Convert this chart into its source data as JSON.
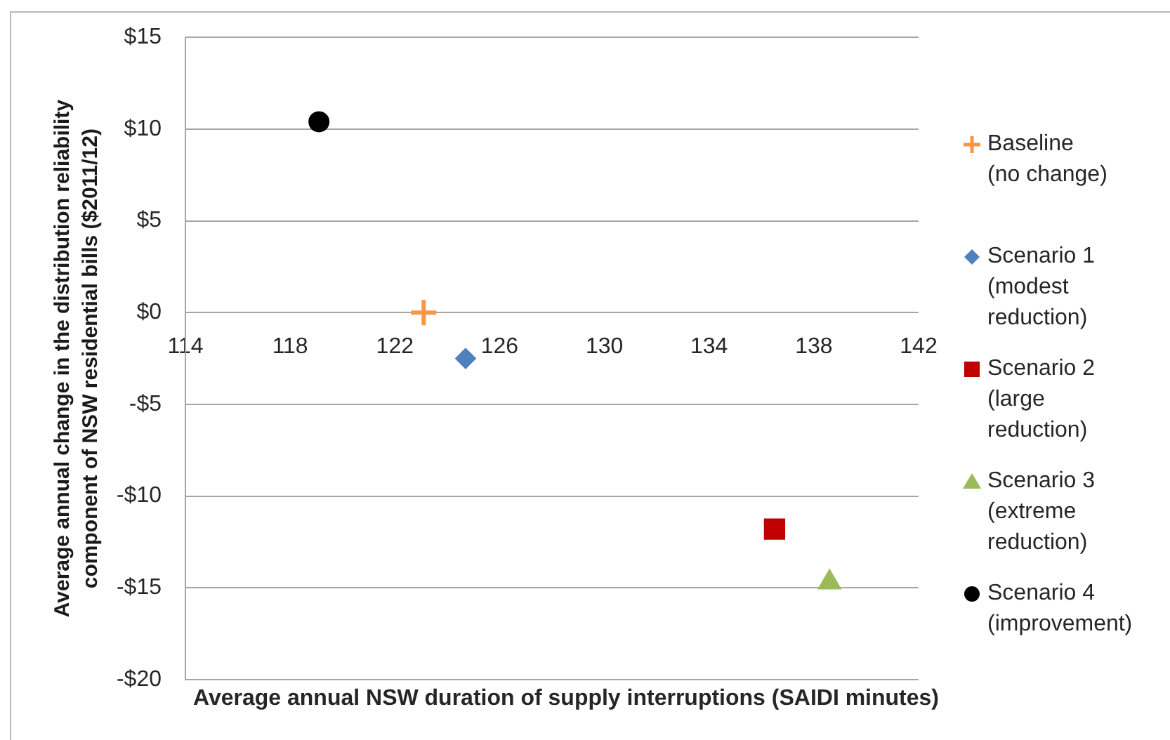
{
  "chart_data": {
    "type": "scatter",
    "xlabel": "Average annual NSW duration of supply interruptions (SAIDI minutes)",
    "ylabel": "Average annual change in the distribution reliability component of NSW residential bills ($2011/12)",
    "series": [
      {
        "name": "Baseline (no change)",
        "color": "#f79646",
        "marker": "cross",
        "x": [
          123.1
        ],
        "values": [
          0
        ]
      },
      {
        "name": "Scenario 1 (modest reduction)",
        "color": "#4f81bd",
        "marker": "diamond",
        "x": [
          124.7
        ],
        "values": [
          -2.5
        ]
      },
      {
        "name": "Scenario 2 (large reduction)",
        "color": "#c00000",
        "marker": "square",
        "x": [
          136.5
        ],
        "values": [
          -11.8
        ]
      },
      {
        "name": "Scenario 3 (extreme reduction)",
        "color": "#9bbb59",
        "marker": "triangle",
        "x": [
          138.6
        ],
        "values": [
          -14.7
        ]
      },
      {
        "name": "Scenario 4 (improvement)",
        "color": "#000000",
        "marker": "circle",
        "x": [
          119.1
        ],
        "values": [
          10.4
        ]
      }
    ],
    "xlim": [
      114,
      142
    ],
    "xticks": [
      114,
      118,
      122,
      126,
      130,
      134,
      138,
      142
    ],
    "ylim": [
      -20,
      15
    ],
    "yticks": [
      {
        "value": -20,
        "label": "-$20"
      },
      {
        "value": -15,
        "label": "-$15"
      },
      {
        "value": -10,
        "label": "-$10"
      },
      {
        "value": -5,
        "label": "-$5"
      },
      {
        "value": 0,
        "label": "$0"
      },
      {
        "value": 5,
        "label": "$5"
      },
      {
        "value": 10,
        "label": "$10"
      },
      {
        "value": 15,
        "label": "$15"
      }
    ],
    "grid": "y",
    "legend": "right"
  }
}
